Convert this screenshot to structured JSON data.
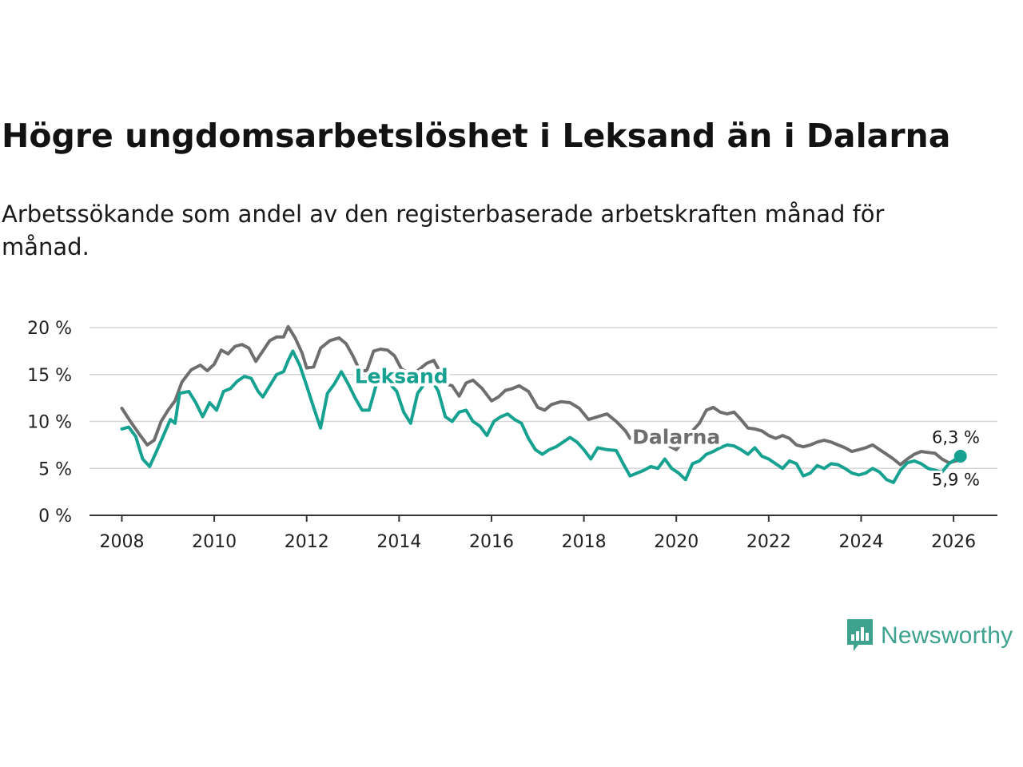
{
  "title": "Högre ungdomsarbetslöshet i Leksand än i Dalarna",
  "subtitle": "Arbetssökande som andel av den registerbaserade arbetskraften månad för månad.",
  "brand": {
    "name": "Newsworthy",
    "color": "#3ea28f"
  },
  "chart_data": {
    "type": "line",
    "title": "Högre ungdomsarbetslöshet i Leksand än i Dalarna",
    "xlabel": "",
    "ylabel": "",
    "xlim": [
      2007.3,
      2026.95
    ],
    "ylim": [
      0,
      20
    ],
    "x_ticks": [
      2008,
      2010,
      2012,
      2014,
      2016,
      2018,
      2020,
      2022,
      2024,
      2026
    ],
    "x_tick_labels": [
      "2008",
      "2010",
      "2012",
      "2014",
      "2016",
      "2018",
      "2020",
      "2022",
      "2024",
      "2026"
    ],
    "y_ticks": [
      0,
      5,
      10,
      15,
      20
    ],
    "y_tick_labels": [
      "0 %",
      "5 %",
      "10 %",
      "15 %",
      "20 %"
    ],
    "grid": "horizontal",
    "series": [
      {
        "name": "Dalarna",
        "color": "#6e6e6e",
        "label": "Dalarna",
        "end_label": "5,9 %",
        "points": [
          [
            2008.0,
            11.4
          ],
          [
            2008.2,
            9.9
          ],
          [
            2008.4,
            8.5
          ],
          [
            2008.55,
            7.5
          ],
          [
            2008.7,
            8.0
          ],
          [
            2008.85,
            10.0
          ],
          [
            2009.0,
            11.2
          ],
          [
            2009.15,
            12.2
          ],
          [
            2009.3,
            14.2
          ],
          [
            2009.5,
            15.5
          ],
          [
            2009.7,
            16.0
          ],
          [
            2009.85,
            15.4
          ],
          [
            2010.0,
            16.1
          ],
          [
            2010.15,
            17.6
          ],
          [
            2010.3,
            17.2
          ],
          [
            2010.45,
            18.0
          ],
          [
            2010.6,
            18.2
          ],
          [
            2010.75,
            17.8
          ],
          [
            2010.9,
            16.4
          ],
          [
            2011.05,
            17.5
          ],
          [
            2011.2,
            18.6
          ],
          [
            2011.35,
            19.0
          ],
          [
            2011.5,
            19.0
          ],
          [
            2011.6,
            20.1
          ],
          [
            2011.75,
            18.9
          ],
          [
            2011.9,
            17.3
          ],
          [
            2012.0,
            15.7
          ],
          [
            2012.15,
            15.8
          ],
          [
            2012.3,
            17.8
          ],
          [
            2012.5,
            18.6
          ],
          [
            2012.7,
            18.9
          ],
          [
            2012.85,
            18.3
          ],
          [
            2013.0,
            17.0
          ],
          [
            2013.15,
            15.4
          ],
          [
            2013.3,
            15.4
          ],
          [
            2013.45,
            17.5
          ],
          [
            2013.6,
            17.7
          ],
          [
            2013.75,
            17.6
          ],
          [
            2013.9,
            17.0
          ],
          [
            2014.05,
            15.6
          ],
          [
            2014.2,
            15.2
          ],
          [
            2014.4,
            15.4
          ],
          [
            2014.6,
            16.2
          ],
          [
            2014.75,
            16.5
          ],
          [
            2014.85,
            15.6
          ],
          [
            2015.0,
            14.0
          ],
          [
            2015.15,
            13.8
          ],
          [
            2015.3,
            12.7
          ],
          [
            2015.45,
            14.1
          ],
          [
            2015.6,
            14.4
          ],
          [
            2015.8,
            13.5
          ],
          [
            2016.0,
            12.2
          ],
          [
            2016.15,
            12.6
          ],
          [
            2016.3,
            13.3
          ],
          [
            2016.45,
            13.5
          ],
          [
            2016.6,
            13.8
          ],
          [
            2016.8,
            13.2
          ],
          [
            2017.0,
            11.5
          ],
          [
            2017.15,
            11.2
          ],
          [
            2017.3,
            11.8
          ],
          [
            2017.5,
            12.1
          ],
          [
            2017.7,
            12.0
          ],
          [
            2017.9,
            11.4
          ],
          [
            2018.1,
            10.2
          ],
          [
            2018.3,
            10.5
          ],
          [
            2018.5,
            10.8
          ],
          [
            2018.7,
            10.0
          ],
          [
            2018.9,
            9.0
          ],
          [
            2019.0,
            8.2
          ],
          [
            2019.2,
            8.3
          ],
          [
            2019.4,
            8.5
          ],
          [
            2019.6,
            8.2
          ],
          [
            2019.8,
            7.5
          ],
          [
            2020.0,
            7.0
          ],
          [
            2020.2,
            8.2
          ],
          [
            2020.35,
            9.0
          ],
          [
            2020.5,
            9.8
          ],
          [
            2020.65,
            11.2
          ],
          [
            2020.8,
            11.5
          ],
          [
            2020.95,
            11.0
          ],
          [
            2021.1,
            10.8
          ],
          [
            2021.25,
            11.0
          ],
          [
            2021.4,
            10.2
          ],
          [
            2021.55,
            9.3
          ],
          [
            2021.7,
            9.2
          ],
          [
            2021.85,
            9.0
          ],
          [
            2022.0,
            8.5
          ],
          [
            2022.15,
            8.2
          ],
          [
            2022.3,
            8.5
          ],
          [
            2022.45,
            8.2
          ],
          [
            2022.6,
            7.5
          ],
          [
            2022.75,
            7.3
          ],
          [
            2022.9,
            7.5
          ],
          [
            2023.05,
            7.8
          ],
          [
            2023.2,
            8.0
          ],
          [
            2023.35,
            7.8
          ],
          [
            2023.5,
            7.5
          ],
          [
            2023.65,
            7.2
          ],
          [
            2023.8,
            6.8
          ],
          [
            2023.95,
            7.0
          ],
          [
            2024.1,
            7.2
          ],
          [
            2024.25,
            7.5
          ],
          [
            2024.4,
            7.0
          ],
          [
            2024.55,
            6.5
          ],
          [
            2024.7,
            6.0
          ],
          [
            2024.85,
            5.4
          ],
          [
            2025.0,
            6.0
          ],
          [
            2025.15,
            6.5
          ],
          [
            2025.3,
            6.8
          ],
          [
            2025.45,
            6.7
          ],
          [
            2025.6,
            6.6
          ],
          [
            2025.75,
            6.0
          ],
          [
            2025.9,
            5.6
          ],
          [
            2026.05,
            5.8
          ],
          [
            2026.15,
            5.9
          ]
        ]
      },
      {
        "name": "Leksand",
        "color": "#16a191",
        "label": "Leksand",
        "end_label": "6,3 %",
        "points": [
          [
            2008.0,
            9.2
          ],
          [
            2008.15,
            9.4
          ],
          [
            2008.3,
            8.4
          ],
          [
            2008.45,
            6.0
          ],
          [
            2008.6,
            5.2
          ],
          [
            2008.75,
            6.8
          ],
          [
            2008.9,
            8.5
          ],
          [
            2009.05,
            10.2
          ],
          [
            2009.15,
            9.8
          ],
          [
            2009.25,
            13.0
          ],
          [
            2009.45,
            13.2
          ],
          [
            2009.6,
            12.0
          ],
          [
            2009.75,
            10.5
          ],
          [
            2009.9,
            12.0
          ],
          [
            2010.05,
            11.2
          ],
          [
            2010.2,
            13.2
          ],
          [
            2010.35,
            13.5
          ],
          [
            2010.5,
            14.3
          ],
          [
            2010.65,
            14.8
          ],
          [
            2010.8,
            14.6
          ],
          [
            2010.95,
            13.2
          ],
          [
            2011.05,
            12.6
          ],
          [
            2011.2,
            13.8
          ],
          [
            2011.35,
            15.0
          ],
          [
            2011.5,
            15.3
          ],
          [
            2011.6,
            16.5
          ],
          [
            2011.7,
            17.5
          ],
          [
            2011.85,
            16.0
          ],
          [
            2012.0,
            13.8
          ],
          [
            2012.15,
            11.5
          ],
          [
            2012.3,
            9.3
          ],
          [
            2012.45,
            13.0
          ],
          [
            2012.6,
            14.0
          ],
          [
            2012.75,
            15.3
          ],
          [
            2012.9,
            14.0
          ],
          [
            2013.05,
            12.5
          ],
          [
            2013.2,
            11.2
          ],
          [
            2013.35,
            11.2
          ],
          [
            2013.5,
            13.8
          ],
          [
            2013.65,
            14.5
          ],
          [
            2013.8,
            14.0
          ],
          [
            2013.95,
            13.2
          ],
          [
            2014.1,
            11.0
          ],
          [
            2014.25,
            9.8
          ],
          [
            2014.4,
            13.0
          ],
          [
            2014.55,
            14.0
          ],
          [
            2014.7,
            14.5
          ],
          [
            2014.85,
            13.2
          ],
          [
            2015.0,
            10.5
          ],
          [
            2015.15,
            10.0
          ],
          [
            2015.3,
            11.0
          ],
          [
            2015.45,
            11.2
          ],
          [
            2015.6,
            10.0
          ],
          [
            2015.75,
            9.5
          ],
          [
            2015.9,
            8.5
          ],
          [
            2016.05,
            10.0
          ],
          [
            2016.2,
            10.5
          ],
          [
            2016.35,
            10.8
          ],
          [
            2016.5,
            10.2
          ],
          [
            2016.65,
            9.8
          ],
          [
            2016.8,
            8.2
          ],
          [
            2016.95,
            7.0
          ],
          [
            2017.1,
            6.5
          ],
          [
            2017.25,
            7.0
          ],
          [
            2017.4,
            7.3
          ],
          [
            2017.55,
            7.8
          ],
          [
            2017.7,
            8.3
          ],
          [
            2017.85,
            7.8
          ],
          [
            2018.0,
            7.0
          ],
          [
            2018.15,
            6.0
          ],
          [
            2018.3,
            7.2
          ],
          [
            2018.5,
            7.0
          ],
          [
            2018.7,
            6.9
          ],
          [
            2018.85,
            5.5
          ],
          [
            2019.0,
            4.2
          ],
          [
            2019.15,
            4.5
          ],
          [
            2019.3,
            4.8
          ],
          [
            2019.45,
            5.2
          ],
          [
            2019.6,
            5.0
          ],
          [
            2019.75,
            6.0
          ],
          [
            2019.9,
            5.0
          ],
          [
            2020.05,
            4.5
          ],
          [
            2020.2,
            3.8
          ],
          [
            2020.35,
            5.5
          ],
          [
            2020.5,
            5.8
          ],
          [
            2020.65,
            6.5
          ],
          [
            2020.8,
            6.8
          ],
          [
            2020.95,
            7.2
          ],
          [
            2021.1,
            7.5
          ],
          [
            2021.25,
            7.4
          ],
          [
            2021.4,
            7.0
          ],
          [
            2021.55,
            6.5
          ],
          [
            2021.7,
            7.2
          ],
          [
            2021.85,
            6.3
          ],
          [
            2022.0,
            6.0
          ],
          [
            2022.15,
            5.5
          ],
          [
            2022.3,
            5.0
          ],
          [
            2022.45,
            5.8
          ],
          [
            2022.6,
            5.5
          ],
          [
            2022.75,
            4.2
          ],
          [
            2022.9,
            4.5
          ],
          [
            2023.05,
            5.3
          ],
          [
            2023.2,
            5.0
          ],
          [
            2023.35,
            5.5
          ],
          [
            2023.5,
            5.4
          ],
          [
            2023.65,
            5.0
          ],
          [
            2023.8,
            4.5
          ],
          [
            2023.95,
            4.3
          ],
          [
            2024.1,
            4.5
          ],
          [
            2024.25,
            5.0
          ],
          [
            2024.4,
            4.6
          ],
          [
            2024.55,
            3.8
          ],
          [
            2024.7,
            3.5
          ],
          [
            2024.85,
            4.8
          ],
          [
            2025.0,
            5.6
          ],
          [
            2025.15,
            5.8
          ],
          [
            2025.3,
            5.5
          ],
          [
            2025.45,
            5.0
          ],
          [
            2025.6,
            4.8
          ],
          [
            2025.75,
            4.6
          ],
          [
            2025.9,
            5.5
          ],
          [
            2026.05,
            6.0
          ],
          [
            2026.15,
            6.3
          ]
        ]
      }
    ]
  }
}
